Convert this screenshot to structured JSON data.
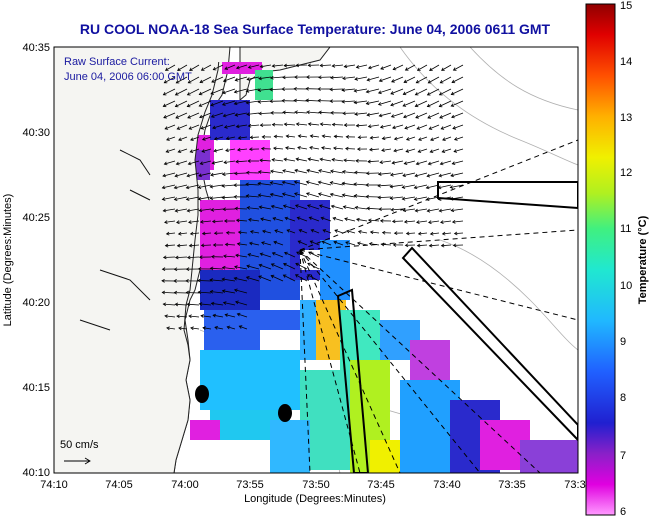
{
  "title": "RU COOL  NOAA-18  Sea Surface Temperature:  June 04, 2006 0611 GMT",
  "annotation": {
    "line1": "Raw Surface Current:",
    "line2": "June 04, 2006 06:00 GMT"
  },
  "scale_label": "50 cm/s",
  "chart_data": {
    "type": "heatmap",
    "title": "RU COOL  NOAA-18  Sea Surface Temperature:  June 04, 2006 0611 GMT",
    "xlabel": "Longitude (Degrees:Minutes)",
    "ylabel": "Latitude (Degrees:Minutes)",
    "x_ticks": [
      "74:10",
      "74:05",
      "74:00",
      "73:55",
      "73:50",
      "73:45",
      "73:40",
      "73:35",
      "73:3"
    ],
    "y_ticks": [
      "40:35",
      "40:30",
      "40:25",
      "40:20",
      "40:15",
      "40:10"
    ],
    "colorbar": {
      "label": "Temperature (°C)",
      "range": [
        6,
        15
      ],
      "ticks": [
        "15",
        "14",
        "13",
        "12",
        "11",
        "10",
        "9",
        "8",
        "7",
        "6"
      ]
    },
    "overlay": "Raw Surface Current vectors (scale 50 cm/s)"
  },
  "colors": {
    "land": "#f4f4f0",
    "coast": "#000000",
    "title": "#1010a0"
  }
}
